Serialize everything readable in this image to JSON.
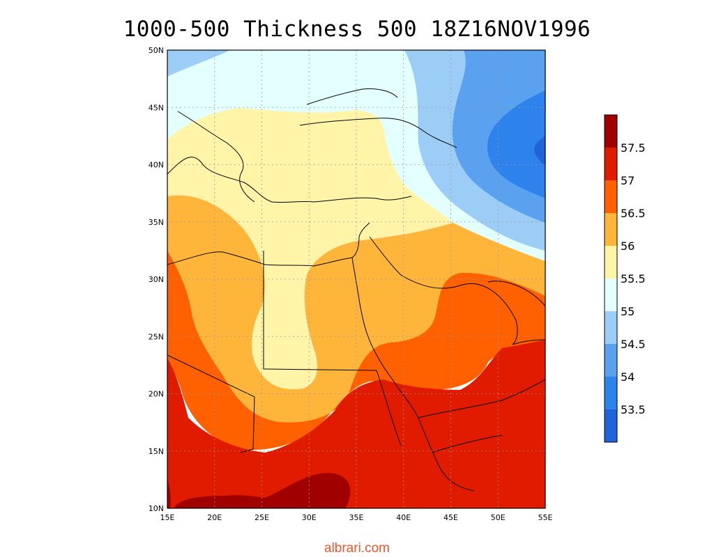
{
  "title": "1000-500 Thickness 500 18Z16NOV1996",
  "lat_labels": [
    "50N",
    "45N",
    "40N",
    "35N",
    "30N",
    "25N",
    "20N",
    "15N",
    "10N"
  ],
  "lon_labels": [
    "15E",
    "20E",
    "25E",
    "30E",
    "35E",
    "40E",
    "45E",
    "50E",
    "55E"
  ],
  "colorbar": {
    "levels": [
      "57.5",
      "57",
      "56.5",
      "56",
      "55.5",
      "55",
      "54.5",
      "54",
      "53.5"
    ],
    "colors_top_to_bottom": [
      "#a00000",
      "#e11b00",
      "#ff6000",
      "#ffb43a",
      "#fff4a8",
      "#e4ffff",
      "#9ccdf6",
      "#5aa2f0",
      "#2d82ec",
      "#1f64db"
    ]
  },
  "palette": {
    "c53": "#1f64db",
    "c535": "#2d82ec",
    "c54": "#5aa2f0",
    "c545": "#9ccdf6",
    "c55": "#e4ffff",
    "c555": "#fff4a8",
    "c56": "#ffb43a",
    "c565": "#ff6000",
    "c57": "#e11b00",
    "c575": "#a00000"
  },
  "watermark": "albrari.com"
}
